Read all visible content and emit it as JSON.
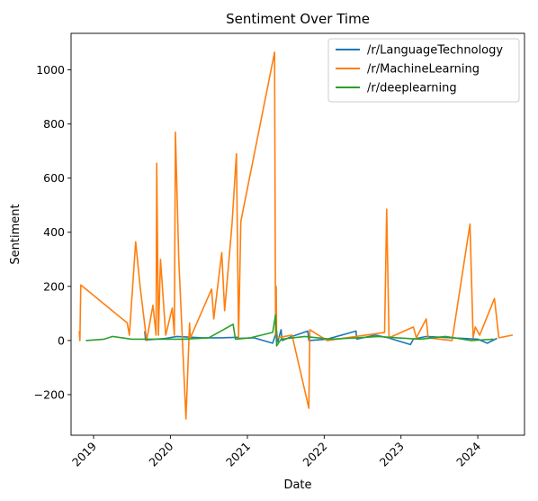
{
  "chart_data": {
    "type": "line",
    "title": "Sentiment Over Time",
    "xlabel": "Date",
    "ylabel": "Sentiment",
    "x_ticks": [
      "2019",
      "2020",
      "2021",
      "2022",
      "2023",
      "2024"
    ],
    "x_tick_dates": [
      "2019-01-01",
      "2020-01-01",
      "2021-01-01",
      "2022-01-01",
      "2023-01-01",
      "2024-01-01"
    ],
    "y_ticks": [
      -200,
      0,
      200,
      400,
      600,
      800,
      1000
    ],
    "y_tick_labels": [
      "−200",
      "0",
      "200",
      "400",
      "600",
      "800",
      "1000"
    ],
    "xlim": [
      "2018-09-16",
      "2024-08-10"
    ],
    "ylim": [
      -350,
      1135
    ],
    "grid": false,
    "legend_position": "top-right",
    "series": [
      {
        "name": "/r/LanguageTechnology",
        "color": "#1f77b4",
        "points": [
          [
            "2019-09-01",
            35
          ],
          [
            "2019-09-05",
            2
          ],
          [
            "2019-12-10",
            8
          ],
          [
            "2020-02-01",
            15
          ],
          [
            "2020-06-01",
            10
          ],
          [
            "2020-09-01",
            10
          ],
          [
            "2020-11-15",
            12
          ],
          [
            "2020-11-20",
            8
          ],
          [
            "2021-02-01",
            10
          ],
          [
            "2021-05-01",
            -10
          ],
          [
            "2021-05-20",
            35
          ],
          [
            "2021-05-25",
            -5
          ],
          [
            "2021-06-10",
            40
          ],
          [
            "2021-06-15",
            0
          ],
          [
            "2021-08-01",
            15
          ],
          [
            "2021-10-15",
            35
          ],
          [
            "2021-10-20",
            0
          ],
          [
            "2022-01-15",
            5
          ],
          [
            "2022-06-01",
            35
          ],
          [
            "2022-06-05",
            5
          ],
          [
            "2022-09-01",
            20
          ],
          [
            "2022-11-01",
            10
          ],
          [
            "2023-02-15",
            -15
          ],
          [
            "2023-03-01",
            5
          ],
          [
            "2023-05-01",
            15
          ],
          [
            "2023-09-01",
            10
          ],
          [
            "2024-01-01",
            5
          ],
          [
            "2024-02-15",
            -10
          ],
          [
            "2024-04-01",
            8
          ]
        ]
      },
      {
        "name": "/r/MachineLearning",
        "color": "#ff7f0e",
        "points": [
          [
            "2018-10-25",
            35
          ],
          [
            "2018-10-28",
            0
          ],
          [
            "2018-11-01",
            205
          ],
          [
            "2019-06-10",
            65
          ],
          [
            "2019-06-20",
            20
          ],
          [
            "2019-07-20",
            365
          ],
          [
            "2019-08-10",
            200
          ],
          [
            "2019-09-10",
            0
          ],
          [
            "2019-10-10",
            130
          ],
          [
            "2019-10-25",
            20
          ],
          [
            "2019-10-28",
            655
          ],
          [
            "2019-11-05",
            20
          ],
          [
            "2019-11-15",
            300
          ],
          [
            "2019-12-10",
            20
          ],
          [
            "2020-01-10",
            120
          ],
          [
            "2020-01-20",
            20
          ],
          [
            "2020-01-25",
            770
          ],
          [
            "2020-02-10",
            300
          ],
          [
            "2020-03-15",
            -290
          ],
          [
            "2020-04-01",
            65
          ],
          [
            "2020-04-05",
            10
          ],
          [
            "2020-07-15",
            190
          ],
          [
            "2020-07-25",
            80
          ],
          [
            "2020-09-01",
            325
          ],
          [
            "2020-09-15",
            110
          ],
          [
            "2020-10-20",
            430
          ],
          [
            "2020-11-10",
            690
          ],
          [
            "2020-11-20",
            10
          ],
          [
            "2020-12-01",
            440
          ],
          [
            "2021-05-10",
            1065
          ],
          [
            "2021-05-15",
            20
          ],
          [
            "2021-05-18",
            200
          ],
          [
            "2021-05-20",
            10
          ],
          [
            "2021-08-01",
            20
          ],
          [
            "2021-10-20",
            -250
          ],
          [
            "2021-10-25",
            40
          ],
          [
            "2022-01-15",
            0
          ],
          [
            "2022-06-01",
            15
          ],
          [
            "2022-10-15",
            30
          ],
          [
            "2022-10-25",
            485
          ],
          [
            "2022-11-05",
            10
          ],
          [
            "2023-03-01",
            50
          ],
          [
            "2023-03-15",
            10
          ],
          [
            "2023-05-01",
            80
          ],
          [
            "2023-05-10",
            10
          ],
          [
            "2023-09-01",
            0
          ],
          [
            "2023-11-25",
            430
          ],
          [
            "2023-12-10",
            10
          ],
          [
            "2023-12-20",
            50
          ],
          [
            "2024-01-10",
            20
          ],
          [
            "2024-03-20",
            155
          ],
          [
            "2024-04-10",
            10
          ],
          [
            "2024-06-15",
            20
          ]
        ]
      },
      {
        "name": "/r/deeplearning",
        "color": "#2ca02c",
        "points": [
          [
            "2018-11-25",
            0
          ],
          [
            "2019-02-20",
            5
          ],
          [
            "2019-04-01",
            15
          ],
          [
            "2019-07-01",
            5
          ],
          [
            "2019-10-15",
            5
          ],
          [
            "2020-03-01",
            5
          ],
          [
            "2020-07-01",
            10
          ],
          [
            "2020-10-25",
            60
          ],
          [
            "2020-11-05",
            5
          ],
          [
            "2021-01-15",
            10
          ],
          [
            "2021-05-01",
            30
          ],
          [
            "2021-05-15",
            95
          ],
          [
            "2021-05-20",
            -20
          ],
          [
            "2021-06-10",
            5
          ],
          [
            "2021-10-01",
            15
          ],
          [
            "2022-02-01",
            5
          ],
          [
            "2022-06-10",
            10
          ],
          [
            "2022-09-15",
            15
          ],
          [
            "2022-12-15",
            10
          ],
          [
            "2023-04-01",
            5
          ],
          [
            "2023-08-01",
            15
          ],
          [
            "2023-12-01",
            0
          ],
          [
            "2024-03-15",
            5
          ]
        ]
      }
    ]
  }
}
